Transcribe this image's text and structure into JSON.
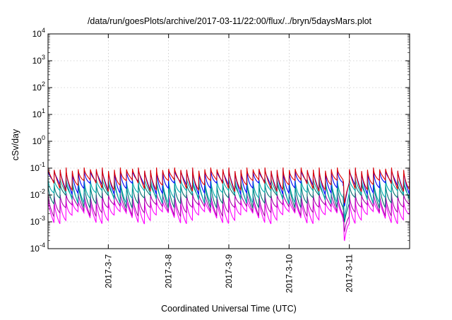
{
  "chart_data": {
    "type": "line",
    "title": "/data/run/goesPlots/archive/2017-03-11/22:00/flux/../bryn/5daysMars.plot",
    "xlabel": "Coordinated Universal Time (UTC)",
    "ylabel": "cSv/day",
    "y_scale": "log",
    "ylim": [
      0.0001,
      10000
    ],
    "xlim": [
      "2017-03-06 00:00",
      "2017-03-12 00:00"
    ],
    "x_tick_labels": [
      "2017-3-7",
      "2017-3-8",
      "2017-3-9",
      "2017-3-10",
      "2017-3-11"
    ],
    "y_tick_labels": [
      {
        "base": "10",
        "exp": "-4"
      },
      {
        "base": "10",
        "exp": "-3"
      },
      {
        "base": "10",
        "exp": "-2"
      },
      {
        "base": "10",
        "exp": "-1"
      },
      {
        "base": "10",
        "exp": "0"
      },
      {
        "base": "10",
        "exp": "1"
      },
      {
        "base": "10",
        "exp": "2"
      },
      {
        "base": "10",
        "exp": "3"
      },
      {
        "base": "10",
        "exp": "4"
      }
    ],
    "grid": true,
    "sawtooth_cycles_per_day": 10,
    "series": [
      {
        "color": "#e00000",
        "peak": 0.105,
        "trough": 0.013,
        "dip_floor": 0.0045
      },
      {
        "color": "#0000ff",
        "peak": 0.095,
        "trough": 0.01,
        "dip_floor": 0.0035
      },
      {
        "color": "#00aaaa",
        "peak": 0.045,
        "trough": 0.0045,
        "dip_floor": 0.0012
      },
      {
        "color": "#007070",
        "peak": 0.03,
        "trough": 0.003,
        "dip_floor": 0.0009
      },
      {
        "color": "#aa00aa",
        "peak": 0.012,
        "trough": 0.0015,
        "dip_floor": 0.0004
      },
      {
        "color": "#ff00ff",
        "peak": 0.007,
        "trough": 0.0008,
        "dip_floor": 0.00018
      }
    ],
    "event": {
      "start": "2017-03-10 21:30",
      "min": "2017-03-10 22:00",
      "recover": "2017-03-11 00:00"
    }
  }
}
